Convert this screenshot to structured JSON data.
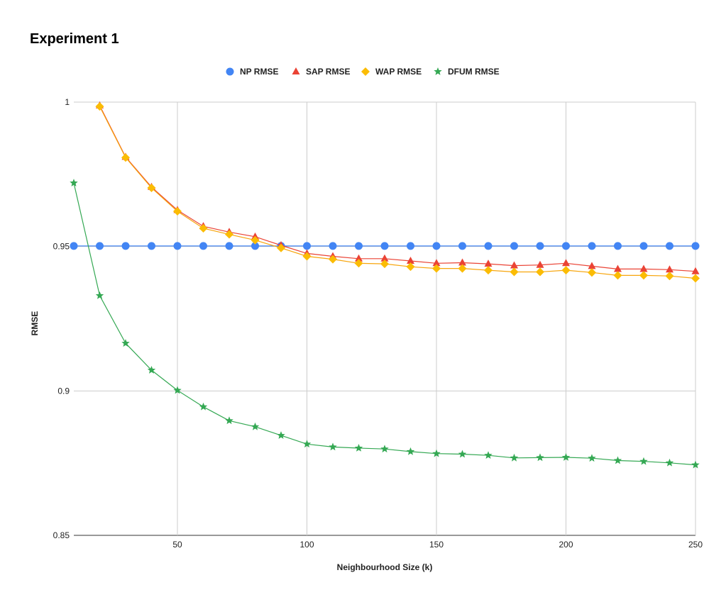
{
  "chart_data": {
    "type": "line",
    "title": "Experiment 1",
    "xlabel": "Neighbourhood Size (k)",
    "ylabel": "RMSE",
    "xlim": [
      10,
      250
    ],
    "ylim": [
      0.85,
      1
    ],
    "x_ticks": [
      50,
      100,
      150,
      200,
      250
    ],
    "y_ticks": [
      0.85,
      0.9,
      0.95,
      1
    ],
    "y_tick_labels": [
      "0.85",
      "0.9",
      "0.95",
      "1"
    ],
    "grid": true,
    "legend_position": "top",
    "x": [
      10,
      20,
      30,
      40,
      50,
      60,
      70,
      80,
      90,
      100,
      110,
      120,
      130,
      140,
      150,
      160,
      170,
      180,
      190,
      200,
      210,
      220,
      230,
      240,
      250
    ],
    "series": [
      {
        "name": "NP RMSE",
        "color": "#4285F4",
        "marker": "circle",
        "values": [
          0.9502,
          0.9502,
          0.9502,
          0.9502,
          0.9502,
          0.9502,
          0.9502,
          0.9502,
          0.9502,
          0.9502,
          0.9502,
          0.9502,
          0.9502,
          0.9502,
          0.9502,
          0.9502,
          0.9502,
          0.9502,
          0.9502,
          0.9502,
          0.9502,
          0.9502,
          0.9502,
          0.9502,
          0.9502
        ]
      },
      {
        "name": "SAP RMSE",
        "color": "#EA4335",
        "marker": "triangle",
        "values": [
          null,
          0.9988,
          0.981,
          0.9706,
          0.9626,
          0.957,
          0.955,
          0.9534,
          0.9504,
          0.9476,
          0.9466,
          0.9458,
          0.9458,
          0.945,
          0.9442,
          0.9444,
          0.944,
          0.9434,
          0.9436,
          0.9442,
          0.9432,
          0.9422,
          0.9422,
          0.942,
          0.9414
        ]
      },
      {
        "name": "WAP RMSE",
        "color": "#FBBC04",
        "marker": "diamond",
        "values": [
          null,
          0.9985,
          0.9808,
          0.9703,
          0.9622,
          0.9563,
          0.9542,
          0.9522,
          0.9495,
          0.9466,
          0.9456,
          0.9442,
          0.944,
          0.943,
          0.9424,
          0.9424,
          0.9418,
          0.9412,
          0.9412,
          0.9418,
          0.941,
          0.94,
          0.94,
          0.9398,
          0.939
        ]
      },
      {
        "name": "DFUM RMSE",
        "color": "#34A853",
        "marker": "star",
        "values": [
          0.972,
          0.933,
          0.9165,
          0.9072,
          0.9002,
          0.8945,
          0.8897,
          0.8876,
          0.8846,
          0.8816,
          0.8806,
          0.8802,
          0.8799,
          0.879,
          0.8783,
          0.8781,
          0.8777,
          0.8768,
          0.8769,
          0.877,
          0.8767,
          0.8759,
          0.8756,
          0.8751,
          0.8744
        ]
      }
    ]
  }
}
